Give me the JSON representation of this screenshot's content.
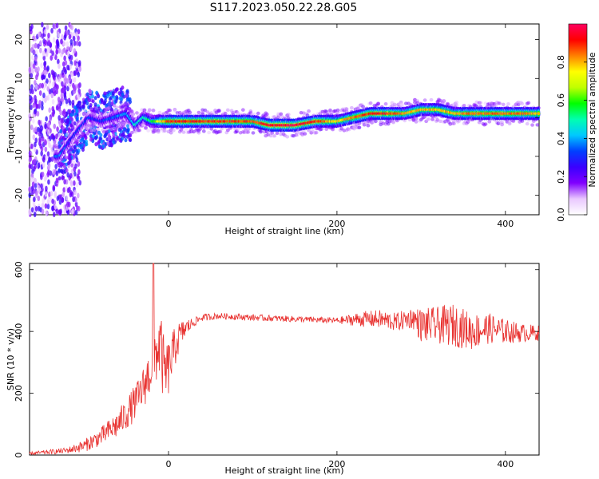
{
  "title": "S117.2023.050.22.28.G05",
  "chart_data": [
    {
      "type": "heatmap",
      "xlabel": "Height of straight line (km)",
      "ylabel": "Frequency (Hz)",
      "xlim": [
        -165,
        440
      ],
      "ylim": [
        -25,
        24
      ],
      "xticks": [
        0,
        200,
        400
      ],
      "yticks": [
        -20,
        -10,
        0,
        10,
        20
      ],
      "grid": false,
      "colorbar": {
        "label": "Normalized spectral amplitude",
        "range": [
          0.0,
          1.0
        ],
        "ticks": [
          0.0,
          0.2,
          0.4,
          0.6,
          0.8
        ],
        "colormap": [
          "#ffffff",
          "#e9c8ff",
          "#8000ff",
          "#3a00ff",
          "#0040ff",
          "#00c8ff",
          "#00ffb0",
          "#00ff00",
          "#c0ff00",
          "#ffff00",
          "#ff8000",
          "#ff0000",
          "#ff0060"
        ]
      },
      "ridge": {
        "x": [
          -130,
          -110,
          -95,
          -80,
          -65,
          -50,
          -40,
          -30,
          -20,
          0,
          50,
          100,
          120,
          150,
          175,
          200,
          220,
          240,
          260,
          280,
          300,
          320,
          340,
          360,
          380,
          400,
          420,
          440
        ],
        "y": [
          -10,
          -4,
          0,
          -1,
          0,
          1,
          -2,
          0,
          -1,
          -1,
          -1,
          -1,
          -2,
          -2,
          -1,
          -1,
          0,
          1,
          1,
          1,
          2,
          2,
          1,
          1,
          1,
          1,
          1,
          1
        ],
        "amplitude": [
          0.35,
          0.3,
          0.3,
          0.3,
          0.35,
          0.4,
          0.45,
          0.5,
          0.55,
          0.9,
          0.9,
          0.85,
          0.95,
          0.95,
          0.9,
          0.75,
          0.85,
          0.9,
          0.9,
          0.8,
          0.8,
          0.8,
          0.8,
          0.85,
          0.85,
          0.85,
          0.85,
          0.8
        ]
      }
    },
    {
      "type": "line",
      "xlabel": "Height of straight line (km)",
      "ylabel": "SNR (10 * v/v)",
      "xlim": [
        -165,
        440
      ],
      "ylim": [
        0,
        620
      ],
      "xticks": [
        0,
        200,
        400
      ],
      "yticks": [
        0,
        200,
        400,
        600
      ],
      "grid": false,
      "series": [
        {
          "color": "#e8312f",
          "x": [
            -165,
            -140,
            -120,
            -100,
            -80,
            -60,
            -45,
            -35,
            -28,
            -22,
            -18,
            -15,
            -10,
            -5,
            0,
            10,
            20,
            30,
            40,
            60,
            100,
            150,
            200,
            230,
            250,
            270,
            290,
            300,
            320,
            340,
            360,
            380,
            400,
            420,
            440
          ],
          "y": [
            5,
            10,
            15,
            30,
            60,
            100,
            150,
            190,
            230,
            270,
            300,
            330,
            360,
            260,
            280,
            370,
            410,
            430,
            445,
            450,
            445,
            440,
            435,
            440,
            440,
            430,
            445,
            420,
            420,
            420,
            400,
            410,
            400,
            395,
            395
          ],
          "noise": [
            5,
            8,
            10,
            20,
            30,
            45,
            55,
            60,
            70,
            80,
            90,
            100,
            120,
            110,
            90,
            60,
            30,
            15,
            12,
            10,
            10,
            10,
            10,
            25,
            30,
            30,
            35,
            55,
            60,
            70,
            60,
            50,
            40,
            30,
            25
          ]
        }
      ],
      "annotations": [
        {
          "x": -18,
          "y": 620,
          "label": ""
        }
      ]
    }
  ]
}
